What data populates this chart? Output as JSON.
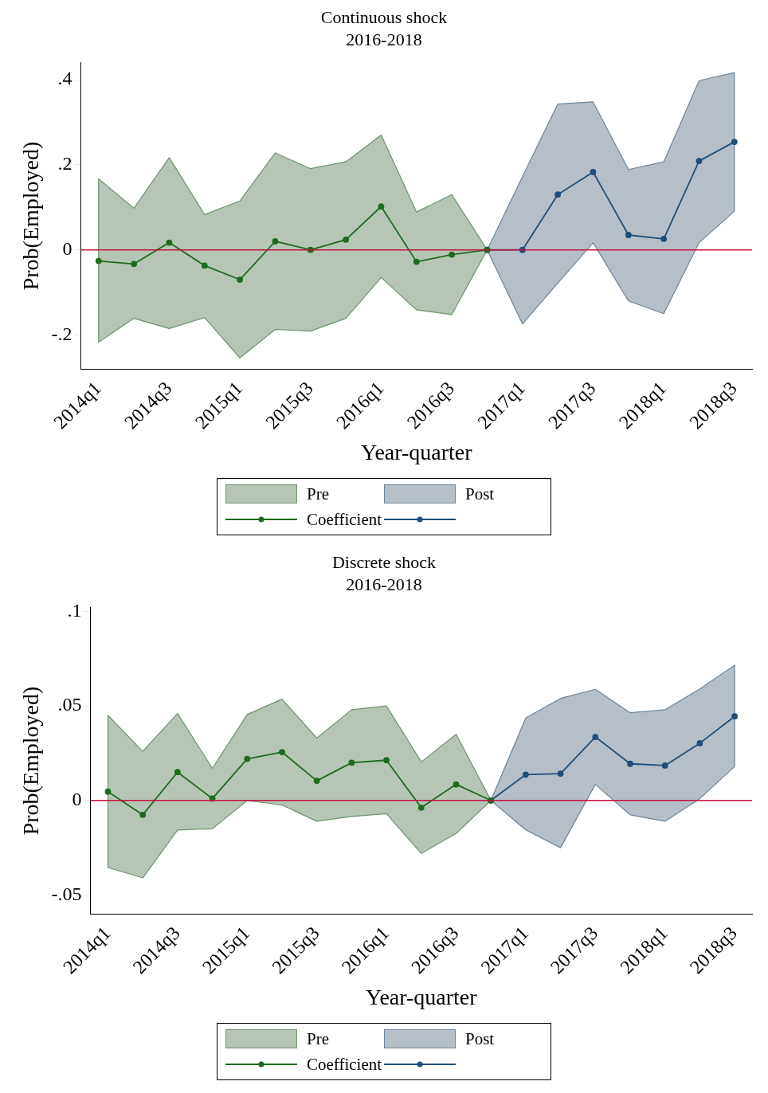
{
  "chart_data": [
    {
      "type": "line",
      "title": "Continuous shock",
      "subtitle": "2016-2018",
      "xlabel": "Year-quarter",
      "ylabel": "Prob(Employed)",
      "categories": [
        "2014q1",
        null,
        "2014q3",
        null,
        "2015q1",
        null,
        "2015q3",
        null,
        "2016q1",
        null,
        "2016q3",
        null,
        "2017q1",
        null,
        "2017q3",
        null,
        "2018q1",
        null,
        "2018q3"
      ],
      "series": [
        {
          "name": "Coefficient",
          "color": "#1e6b1e",
          "values": [
            -0.026,
            -0.033,
            0.017,
            -0.037,
            -0.07,
            0.02,
            0,
            0.024,
            0.102,
            -0.028,
            -0.011,
            0,
            null,
            null,
            null,
            null,
            null,
            null,
            null
          ],
          "lower": [
            -0.217,
            -0.161,
            -0.185,
            -0.159,
            -0.254,
            -0.187,
            -0.191,
            -0.161,
            -0.065,
            -0.141,
            -0.152,
            0,
            null,
            null,
            null,
            null,
            null,
            null,
            null
          ],
          "upper": [
            0.167,
            0.098,
            0.217,
            0.083,
            0.115,
            0.228,
            0.191,
            0.207,
            0.27,
            0.089,
            0.13,
            0,
            null,
            null,
            null,
            null,
            null,
            null,
            null
          ]
        },
        {
          "color": "#1f4e79",
          "values": [
            null,
            null,
            null,
            null,
            null,
            null,
            null,
            null,
            null,
            null,
            null,
            0,
            0,
            0.13,
            0.183,
            0.035,
            0.026,
            0.209,
            0.254
          ],
          "lower": [
            null,
            null,
            null,
            null,
            null,
            null,
            null,
            null,
            null,
            null,
            null,
            0,
            -0.174,
            -0.078,
            0.017,
            -0.12,
            -0.15,
            0.017,
            0.091
          ],
          "upper": [
            null,
            null,
            null,
            null,
            null,
            null,
            null,
            null,
            null,
            null,
            null,
            0,
            0.172,
            0.343,
            0.348,
            0.189,
            0.207,
            0.398,
            0.417
          ]
        }
      ],
      "annotations": [
        "Pre",
        "Post"
      ],
      "ylim": [
        -0.28,
        0.44
      ],
      "yticks": [
        {
          "value": -0.2,
          "label": "-.2"
        },
        0,
        {
          "value": 0.2,
          "label": ".2"
        },
        {
          "value": 0.4,
          "label": ".4"
        }
      ],
      "ref_lines": [
        {
          "axis": "y",
          "value": 0,
          "color": "#c0143c"
        }
      ],
      "marker": "circle",
      "legend": "bottom"
    },
    {
      "type": "line",
      "title": "Discrete shock",
      "subtitle": "2016-2018",
      "xlabel": "Year-quarter",
      "ylabel": "Prob(Employed)",
      "categories": [
        "2014q1",
        null,
        "2014q3",
        null,
        "2015q1",
        null,
        "2015q3",
        null,
        "2016q1",
        null,
        "2016q3",
        null,
        "2017q1",
        null,
        "2017q3",
        null,
        "2018q1",
        null,
        "2018q3"
      ],
      "series": [
        {
          "name": "Coefficient",
          "color": "#1e6b1e",
          "values": [
            0.0047,
            -0.0076,
            0.015,
            0.001,
            0.022,
            0.0256,
            0.0104,
            0.02,
            0.0213,
            -0.0038,
            0.0085,
            0,
            null,
            null,
            null,
            null,
            null,
            null,
            null
          ],
          "lower": [
            -0.0355,
            -0.041,
            -0.0156,
            -0.015,
            0,
            -0.0024,
            -0.011,
            -0.0085,
            -0.007,
            -0.028,
            -0.0175,
            0,
            null,
            null,
            null,
            null,
            null,
            null,
            null
          ],
          "upper": [
            0.045,
            0.026,
            0.046,
            0.017,
            0.0455,
            0.0536,
            0.033,
            0.048,
            0.05,
            0.0204,
            0.035,
            0,
            null,
            null,
            null,
            null,
            null,
            null,
            null
          ]
        },
        {
          "color": "#1f4e79",
          "values": [
            null,
            null,
            null,
            null,
            null,
            null,
            null,
            null,
            null,
            null,
            null,
            0,
            0.0137,
            0.0142,
            0.0336,
            0.0194,
            0.0185,
            0.0303,
            0.0445
          ],
          "lower": [
            null,
            null,
            null,
            null,
            null,
            null,
            null,
            null,
            null,
            null,
            null,
            0,
            -0.0156,
            -0.025,
            0.0085,
            -0.0076,
            -0.011,
            0.001,
            0.018
          ],
          "upper": [
            null,
            null,
            null,
            null,
            null,
            null,
            null,
            null,
            null,
            null,
            null,
            0,
            0.0436,
            0.054,
            0.0588,
            0.0464,
            0.048,
            0.059,
            0.0716
          ]
        }
      ],
      "annotations": [
        "Pre",
        "Post"
      ],
      "ylim": [
        -0.06,
        0.102
      ],
      "yticks": [
        {
          "value": -0.05,
          "label": "-.05"
        },
        0,
        {
          "value": 0.05,
          "label": ".05"
        },
        {
          "value": 0.1,
          "label": ".1"
        }
      ],
      "ref_lines": [
        {
          "axis": "y",
          "value": 0,
          "color": "#c0143c"
        }
      ],
      "marker": "circle",
      "legend": "bottom"
    }
  ]
}
